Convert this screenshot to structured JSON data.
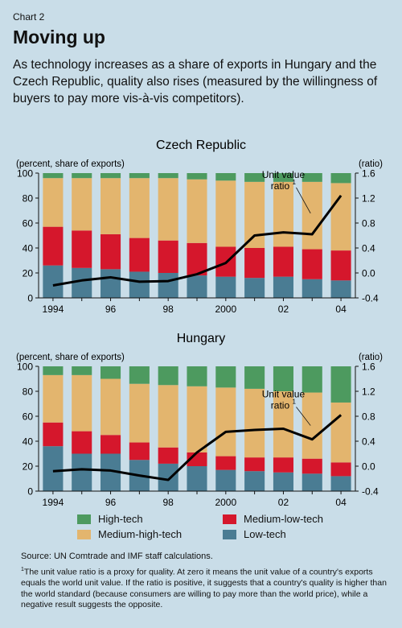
{
  "header": {
    "chart_label": "Chart 2",
    "title": "Moving up",
    "subtitle": "As technology increases as a share of exports in Hungary and the Czech Republic, quality also rises (measured by the willingness of buyers to pay more vis-à-vis competitors)."
  },
  "colors": {
    "background": "#c9dde8",
    "high_tech": "#4d9a5f",
    "medium_low_tech": "#d5172c",
    "medium_high_tech": "#e3b56e",
    "low_tech": "#4a7c93",
    "line": "#000000"
  },
  "legend": {
    "high_tech": "High-tech",
    "medium_low_tech": "Medium-low-tech",
    "medium_high_tech": "Medium-high-tech",
    "low_tech": "Low-tech"
  },
  "footer": {
    "source": "Source: UN Comtrade and IMF staff calculations.",
    "footnote_marker": "1",
    "footnote": "The unit value ratio is a proxy for quality. At zero it means the unit value of a country's exports equals the world unit value. If the ratio is positive, it suggests that a country's quality is higher than the world standard (because consumers are willing to pay more than the world price), while a negative result suggests the opposite."
  },
  "chart_data": [
    {
      "type": "bar",
      "stacked": true,
      "title": "Czech Republic",
      "ylabel_left": "(percent, share of exports)",
      "ylabel_right": "(ratio)",
      "categories": [
        "1994",
        "1995",
        "1996",
        "1997",
        "1998",
        "1999",
        "2000",
        "2001",
        "2002",
        "2003",
        "2004"
      ],
      "x_tick_labels": [
        "1994",
        "",
        "96",
        "",
        "98",
        "",
        "2000",
        "",
        "02",
        "",
        "04"
      ],
      "ylim_left": [
        0,
        100
      ],
      "yticks_left": [
        "0",
        "20",
        "40",
        "60",
        "80",
        "100"
      ],
      "ylim_right": [
        -0.4,
        1.6
      ],
      "yticks_right": [
        "-0.4",
        "0.0",
        "0.4",
        "0.8",
        "1.2",
        "1.6"
      ],
      "series": [
        {
          "name": "Low-tech",
          "values": [
            26,
            24,
            23,
            21,
            20,
            18,
            17,
            16,
            17,
            15,
            14
          ]
        },
        {
          "name": "Medium-low-tech",
          "values": [
            31,
            30,
            28,
            27,
            26,
            26,
            24,
            24,
            24,
            24,
            24
          ]
        },
        {
          "name": "Medium-high-tech",
          "values": [
            39,
            42,
            45,
            48,
            50,
            51,
            53,
            53,
            52,
            54,
            54
          ]
        },
        {
          "name": "High-tech",
          "values": [
            4,
            4,
            4,
            4,
            4,
            5,
            6,
            7,
            7,
            7,
            8
          ]
        }
      ],
      "line": {
        "name": "Unit value ratio",
        "marker": "1",
        "values": [
          -0.2,
          -0.12,
          -0.07,
          -0.14,
          -0.13,
          -0.02,
          0.16,
          0.6,
          0.65,
          0.62,
          1.24
        ]
      }
    },
    {
      "type": "bar",
      "stacked": true,
      "title": "Hungary",
      "ylabel_left": "(percent, share of exports)",
      "ylabel_right": "(ratio)",
      "categories": [
        "1994",
        "1995",
        "1996",
        "1997",
        "1998",
        "1999",
        "2000",
        "2001",
        "2002",
        "2003",
        "2004"
      ],
      "x_tick_labels": [
        "1994",
        "",
        "96",
        "",
        "98",
        "",
        "2000",
        "",
        "02",
        "",
        "04"
      ],
      "ylim_left": [
        0,
        100
      ],
      "yticks_left": [
        "0",
        "20",
        "40",
        "60",
        "80",
        "100"
      ],
      "ylim_right": [
        -0.4,
        1.6
      ],
      "yticks_right": [
        "-0.4",
        "0.0",
        "0.4",
        "0.8",
        "1.2",
        "1.6"
      ],
      "series": [
        {
          "name": "Low-tech",
          "values": [
            36,
            30,
            30,
            25,
            22,
            20,
            17,
            16,
            15,
            14,
            12
          ]
        },
        {
          "name": "Medium-low-tech",
          "values": [
            19,
            18,
            15,
            14,
            13,
            11,
            11,
            11,
            12,
            12,
            11
          ]
        },
        {
          "name": "Medium-high-tech",
          "values": [
            38,
            45,
            45,
            47,
            50,
            53,
            55,
            55,
            53,
            53,
            48
          ]
        },
        {
          "name": "High-tech",
          "values": [
            7,
            7,
            10,
            14,
            15,
            16,
            17,
            18,
            20,
            21,
            29
          ]
        }
      ],
      "line": {
        "name": "Unit value ratio",
        "marker": "1",
        "values": [
          -0.08,
          -0.05,
          -0.07,
          -0.15,
          -0.22,
          0.22,
          0.55,
          0.58,
          0.6,
          0.43,
          0.82
        ]
      }
    }
  ]
}
